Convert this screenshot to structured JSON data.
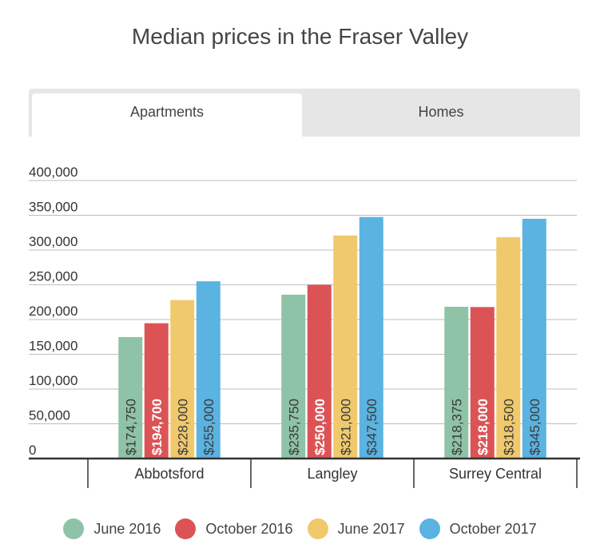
{
  "chart_data": {
    "type": "bar",
    "title": "Median prices in the Fraser Valley",
    "tabs": [
      {
        "label": "Apartments",
        "active": true
      },
      {
        "label": "Homes",
        "active": false
      }
    ],
    "categories": [
      "Abbotsford",
      "Langley",
      "Surrey Central"
    ],
    "series": [
      {
        "name": "June 2016",
        "color": "#8ec3a7",
        "values": [
          174750,
          235750,
          218375
        ],
        "labels": [
          "$174,750",
          "$235,750",
          "$218,375"
        ]
      },
      {
        "name": "October 2016",
        "color": "#dc5356",
        "values": [
          194700,
          250000,
          218000
        ],
        "labels": [
          "$194,700",
          "$250,000",
          "$218,000"
        ]
      },
      {
        "name": "June 2017",
        "color": "#f0c96d",
        "values": [
          228000,
          321000,
          318500
        ],
        "labels": [
          "$228,000",
          "$321,000",
          "$318,500"
        ]
      },
      {
        "name": "October 2017",
        "color": "#5ab3e1",
        "values": [
          255000,
          347500,
          345000
        ],
        "labels": [
          "$255,000",
          "$347,500",
          "$345,000"
        ]
      }
    ],
    "yticks": [
      {
        "value": 0,
        "label": "0"
      },
      {
        "value": 50000,
        "label": "50,000"
      },
      {
        "value": 100000,
        "label": "100,000"
      },
      {
        "value": 150000,
        "label": "150,000"
      },
      {
        "value": 200000,
        "label": "200,000"
      },
      {
        "value": 250000,
        "label": "250,000"
      },
      {
        "value": 300000,
        "label": "300,000"
      },
      {
        "value": 350000,
        "label": "350,000"
      },
      {
        "value": 400000,
        "label": "400,000"
      }
    ],
    "ylim": [
      0,
      400000
    ],
    "grid": true,
    "legend_position": "bottom"
  }
}
